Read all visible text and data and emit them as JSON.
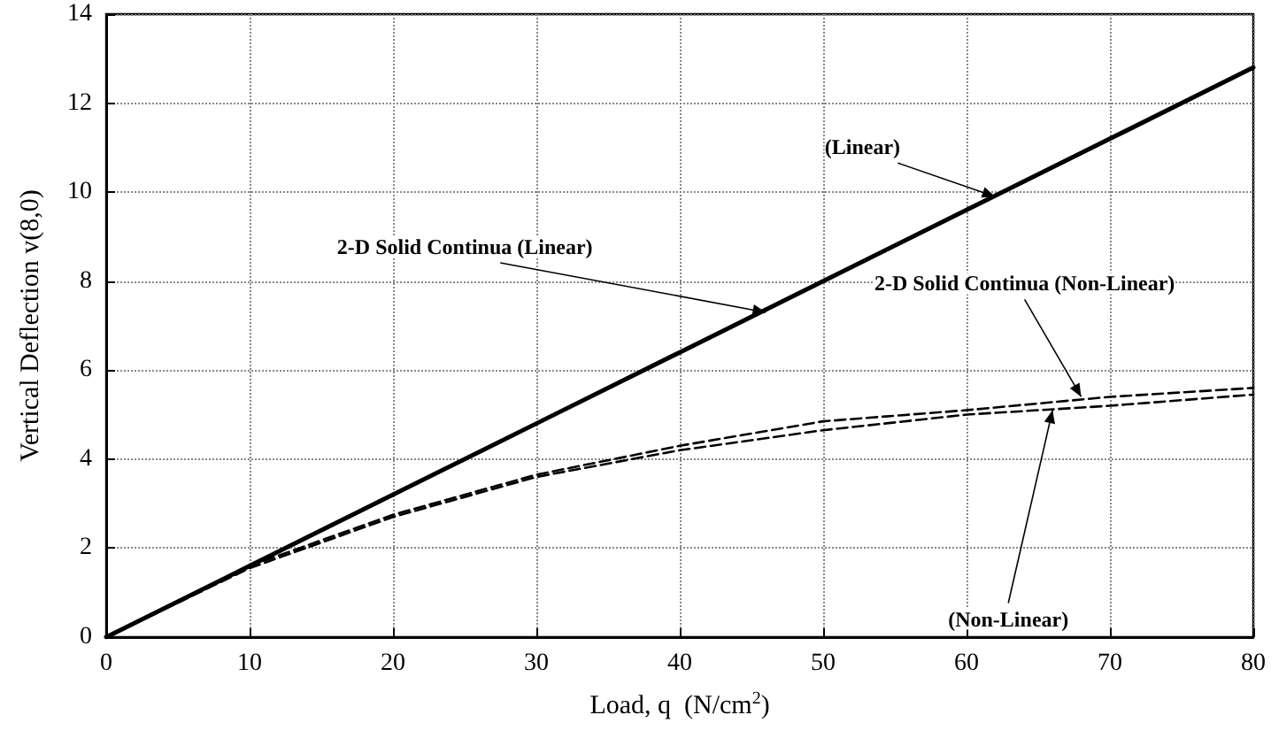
{
  "chart_data": {
    "type": "line",
    "xlabel": "Load, q  (N/cm$^{2}$)",
    "ylabel": "Vertical Deflection v(8,0)",
    "x": [
      0,
      10,
      20,
      30,
      40,
      50,
      60,
      70,
      80
    ],
    "series": [
      {
        "color": "#000000",
        "line_style": "solid",
        "values": [
          0,
          1.6,
          3.2,
          4.8,
          6.4,
          8.0,
          9.6,
          11.2,
          12.8
        ]
      },
      {
        "color": "#000000",
        "line_style": "dashed",
        "values": [
          0,
          1.6,
          2.75,
          3.65,
          4.3,
          4.85,
          5.1,
          5.4,
          5.6
        ]
      },
      {
        "color": "#000000",
        "line_style": "dashed",
        "values": [
          0,
          1.55,
          2.7,
          3.6,
          4.2,
          4.65,
          5.0,
          5.2,
          5.45
        ]
      }
    ],
    "annotations": [
      {
        "text": "(Linear)",
        "x": 62,
        "y": 9.9
      },
      {
        "text": "2-D Solid Continua (Linear)",
        "x": 46,
        "y": 7.3
      },
      {
        "text": "2-D Solid Continua (Non-Linear)",
        "x": 68,
        "y": 5.4
      },
      {
        "text": "(Non-Linear)",
        "x": 66,
        "y": 5.1
      }
    ],
    "xlim": [
      0,
      80
    ],
    "xticks": [
      0,
      10,
      20,
      30,
      40,
      50,
      60,
      70,
      80
    ],
    "ylim": [
      0,
      14
    ],
    "yticks": [
      0,
      2,
      4,
      6,
      8,
      10,
      12,
      14
    ],
    "grid": true,
    "marker": "none"
  }
}
